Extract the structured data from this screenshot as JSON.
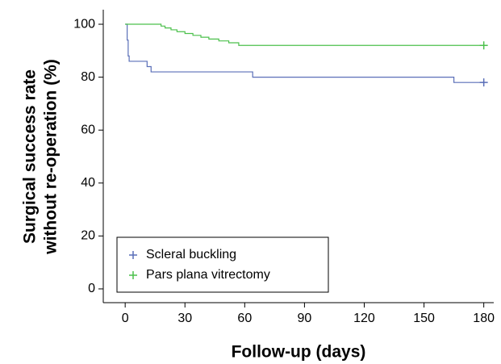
{
  "chart_data": {
    "type": "line",
    "x_label": "Follow-up (days)",
    "y_label": [
      "Surgical success rate",
      "without re-operation (%)"
    ],
    "xlim": [
      -11,
      185
    ],
    "ylim": [
      -5.2,
      105.5
    ],
    "xticks": [
      0,
      30,
      60,
      90,
      120,
      150,
      180
    ],
    "yticks": [
      0,
      20,
      40,
      60,
      80,
      100
    ],
    "step": true,
    "censor_marker": "+",
    "legend": "lower left",
    "series": [
      {
        "name": "Scleral buckling",
        "color": "#5a6fb8",
        "x": [
          0,
          1,
          1,
          1.5,
          1.5,
          2,
          2,
          11,
          11,
          13,
          13,
          64,
          64,
          165,
          165,
          180
        ],
        "values": [
          100,
          100,
          94,
          94,
          88,
          88,
          86,
          86,
          84,
          84,
          82,
          82,
          80,
          80,
          78,
          78
        ]
      },
      {
        "name": "Pars plana vitrectomy",
        "color": "#4cc04c",
        "x": [
          0,
          18,
          18,
          20,
          20,
          23,
          23,
          26,
          26,
          30,
          30,
          34,
          34,
          38,
          38,
          42,
          42,
          47,
          47,
          52,
          52,
          57,
          57,
          180
        ],
        "values": [
          100,
          100,
          99.3,
          99.3,
          98.6,
          98.6,
          97.9,
          97.9,
          97.2,
          97.2,
          96.5,
          96.5,
          95.8,
          95.8,
          95.1,
          95.1,
          94.4,
          94.4,
          93.7,
          93.7,
          93,
          93,
          92,
          92
        ]
      }
    ]
  }
}
